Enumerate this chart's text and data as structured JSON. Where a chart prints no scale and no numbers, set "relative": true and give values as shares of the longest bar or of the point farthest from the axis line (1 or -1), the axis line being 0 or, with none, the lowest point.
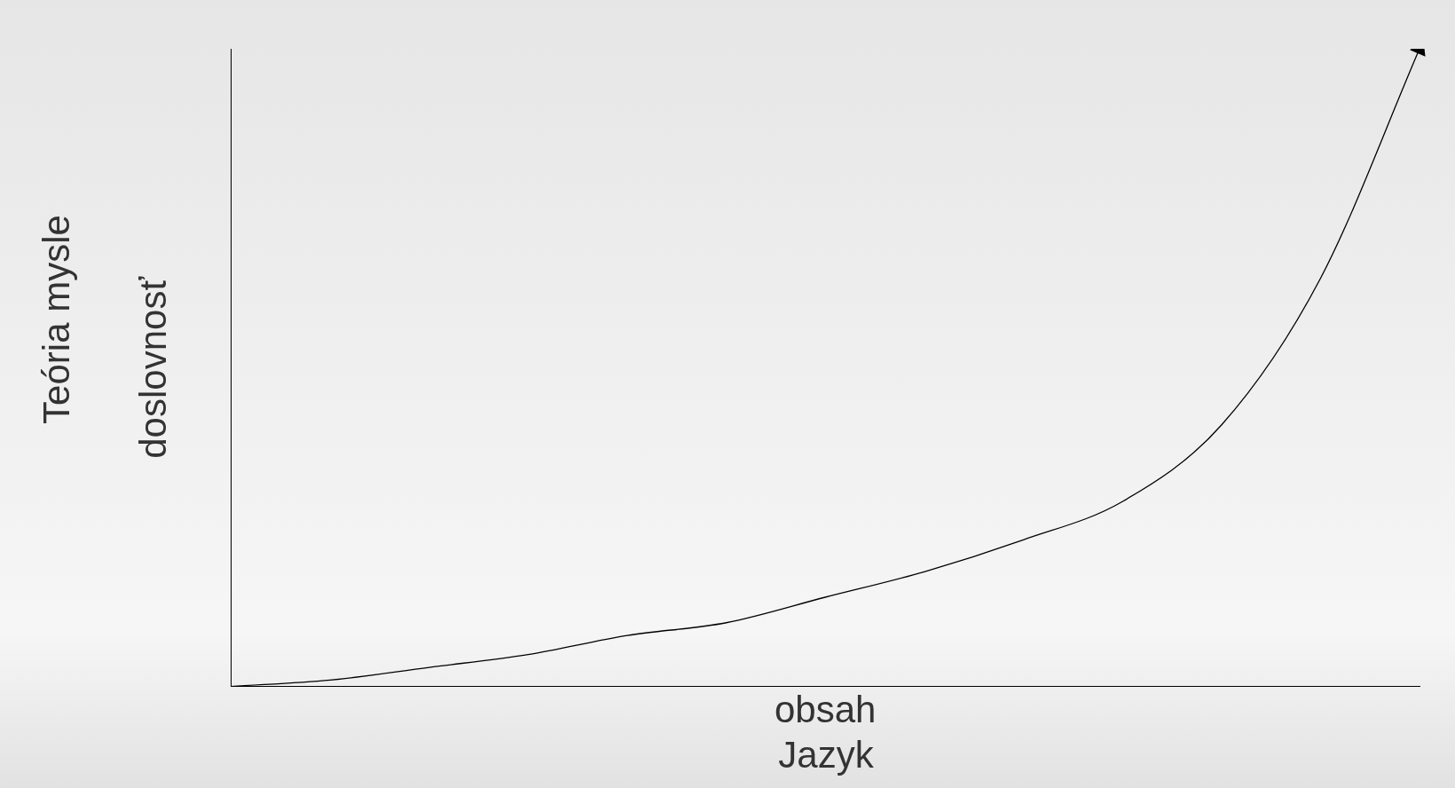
{
  "chart_data": {
    "type": "line",
    "relative": true,
    "xlabel": "obsah",
    "ylabel": "doslovnosť",
    "annotations": [
      "Jazyk",
      "Teória mysle"
    ],
    "categories": [
      null,
      null,
      null,
      null,
      null,
      null,
      null,
      null,
      null,
      null,
      null,
      null,
      null
    ],
    "series": [
      {
        "color": "#000000",
        "values": [
          0,
          0.01,
          0.03,
          0.05,
          0.08,
          0.1,
          0.14,
          0.18,
          0.23,
          0.29,
          0.41,
          0.64,
          1
        ]
      }
    ],
    "marker": "none",
    "line_style": "solid",
    "grid": false,
    "legend": false
  }
}
